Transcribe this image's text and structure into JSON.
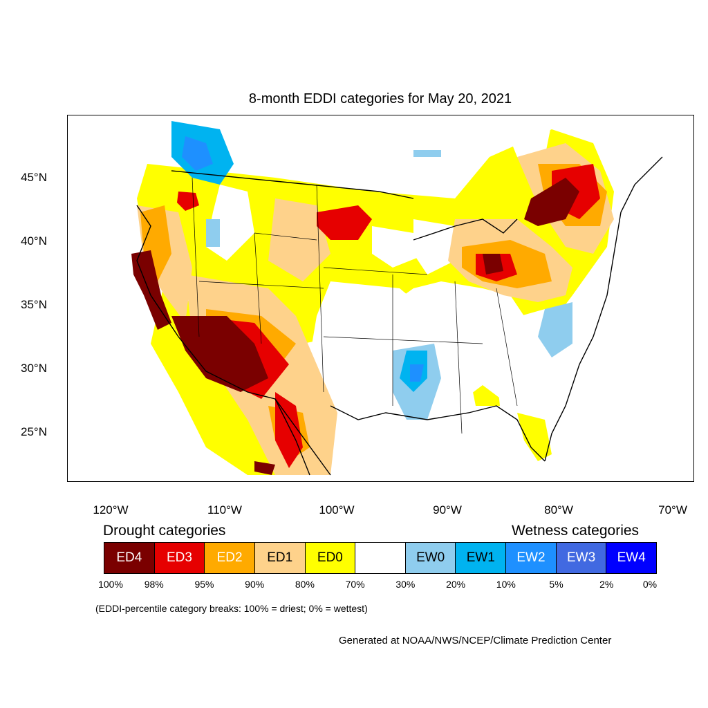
{
  "title": "8-month EDDI categories for May 20, 2021",
  "latitude_labels": [
    "45°N",
    "40°N",
    "35°N",
    "30°N",
    "25°N"
  ],
  "longitude_labels": [
    "120°W",
    "110°W",
    "100°W",
    "90°W",
    "80°W",
    "70°W"
  ],
  "legend": {
    "drought_heading": "Drought categories",
    "wetness_heading": "Wetness categories",
    "categories": [
      {
        "label": "ED4",
        "color": "#7a0000",
        "text_color": "#ffffff"
      },
      {
        "label": "ED3",
        "color": "#e60000",
        "text_color": "#ffffff"
      },
      {
        "label": "ED2",
        "color": "#ffaa00",
        "text_color": "#ffffff"
      },
      {
        "label": "ED1",
        "color": "#fed28b",
        "text_color": "#000000"
      },
      {
        "label": "ED0",
        "color": "#ffff00",
        "text_color": "#000000"
      },
      {
        "label": "",
        "color": "#ffffff",
        "text_color": "#000000"
      },
      {
        "label": "EW0",
        "color": "#8fcdee",
        "text_color": "#000000"
      },
      {
        "label": "EW1",
        "color": "#00b3f0",
        "text_color": "#000000"
      },
      {
        "label": "EW2",
        "color": "#1e90ff",
        "text_color": "#ffffff"
      },
      {
        "label": "EW3",
        "color": "#4169e1",
        "text_color": "#ffffff"
      },
      {
        "label": "EW4",
        "color": "#0000ff",
        "text_color": "#ffffff"
      }
    ],
    "percentiles": [
      "100%",
      "98%",
      "95%",
      "90%",
      "80%",
      "70%",
      "30%",
      "20%",
      "10%",
      "5%",
      "2%",
      "0%"
    ]
  },
  "note": "(EDDI-percentile category breaks: 100% = driest; 0% = wettest)",
  "credit": "Generated at NOAA/NWS/NCEP/Climate Prediction Center"
}
